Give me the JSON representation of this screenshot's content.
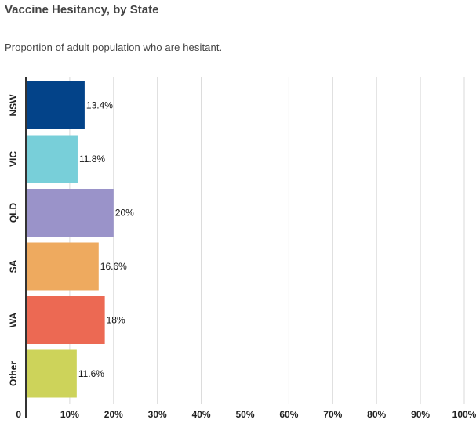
{
  "header": {
    "title": "Vaccine Hesitancy, by State",
    "subtitle": "Proportion of adult population who are hesitant."
  },
  "chart_data": {
    "type": "bar",
    "orientation": "horizontal",
    "title": "Vaccine Hesitancy, by State",
    "subtitle": "Proportion of adult population who are hesitant.",
    "xlabel": "",
    "ylabel": "",
    "xlim": [
      0,
      100
    ],
    "grid": true,
    "legend": "none",
    "categories": [
      "NSW",
      "VIC",
      "QLD",
      "SA",
      "WA",
      "Other"
    ],
    "values": [
      13.4,
      11.8,
      20,
      16.6,
      18,
      11.6
    ],
    "value_labels": [
      "13.4%",
      "11.8%",
      "20%",
      "16.6%",
      "18%",
      "11.6%"
    ],
    "colors": [
      "#034389",
      "#78cfd9",
      "#9a93c9",
      "#eeaa5f",
      "#ec6953",
      "#cdd35a"
    ],
    "tick_values": [
      0,
      10,
      20,
      30,
      40,
      50,
      60,
      70,
      80,
      90,
      100
    ],
    "tick_labels": [
      "0",
      "10%",
      "20%",
      "30%",
      "40%",
      "50%",
      "60%",
      "70%",
      "80%",
      "90%",
      "100%"
    ],
    "gridline_color": "#d9d9d9",
    "axis_color": "#333333"
  }
}
